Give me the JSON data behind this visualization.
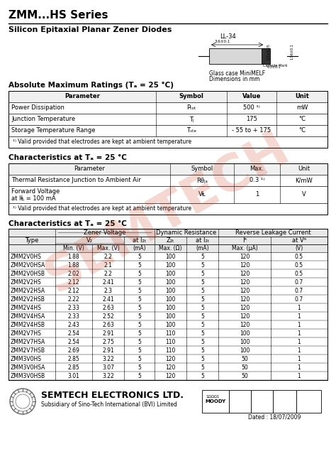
{
  "title": "ZMM...HS Series",
  "subtitle": "Silicon Epitaxial Planar Zener Diodes",
  "bg_color": "#ffffff",
  "watermark_color": "#cc2200",
  "table1_title": "Absolute Maximum Ratings (Tₐ = 25 °C)",
  "table1_headers": [
    "Parameter",
    "Symbol",
    "Value",
    "Unit"
  ],
  "table1_data": [
    [
      "Power Dissipation",
      "Pₜₒₜ",
      "500 ¹⁾",
      "mW"
    ],
    [
      "Junction Temperature",
      "Tⱼ",
      "175",
      "°C"
    ],
    [
      "Storage Temperature Range",
      "Tₛₜₑ",
      "- 55 to + 175",
      "°C"
    ]
  ],
  "table1_note": "¹⁾ Valid provided that electrodes are kept at ambient temperature",
  "table2_title": "Characteristics at Tₐ = 25 °C",
  "table2_headers": [
    "Parameter",
    "Symbol",
    "Max.",
    "Unit"
  ],
  "table2_data": [
    [
      "Thermal Resistance Junction to Ambient Air",
      "Rθⱼₐ",
      "0.3 ¹⁾",
      "K/mW"
    ],
    [
      "Forward Voltage\nat IF = 100 mA",
      "VⱠ",
      "1",
      "V"
    ]
  ],
  "table2_note": "¹⁾ Valid provided that electrodes are kept at ambient temperature",
  "table3_title": "Characteristics at Tₐ = 25 °C",
  "table3_data": [
    [
      "ZMM2V0HS",
      "1.88",
      "2.2",
      "5",
      "100",
      "5",
      "120",
      "0.5"
    ],
    [
      "ZMM2V0HSA",
      "1.88",
      "2.1",
      "5",
      "100",
      "5",
      "120",
      "0.5"
    ],
    [
      "ZMM2V0HSB",
      "2.02",
      "2.2",
      "5",
      "100",
      "5",
      "120",
      "0.5"
    ],
    [
      "ZMM2V2HS",
      "2.12",
      "2.41",
      "5",
      "100",
      "5",
      "120",
      "0.7"
    ],
    [
      "ZMM2V2HSA",
      "2.12",
      "2.3",
      "5",
      "100",
      "5",
      "120",
      "0.7"
    ],
    [
      "ZMM2V2HSB",
      "2.22",
      "2.41",
      "5",
      "100",
      "5",
      "120",
      "0.7"
    ],
    [
      "ZMM2V4HS",
      "2.33",
      "2.63",
      "5",
      "100",
      "5",
      "120",
      "1"
    ],
    [
      "ZMM2V4HSA",
      "2.33",
      "2.52",
      "5",
      "100",
      "5",
      "120",
      "1"
    ],
    [
      "ZMM2V4HSB",
      "2.43",
      "2.63",
      "5",
      "100",
      "5",
      "120",
      "1"
    ],
    [
      "ZMM2V7HS",
      "2.54",
      "2.91",
      "5",
      "110",
      "5",
      "100",
      "1"
    ],
    [
      "ZMM2V7HSA",
      "2.54",
      "2.75",
      "5",
      "110",
      "5",
      "100",
      "1"
    ],
    [
      "ZMM2V7HSB",
      "2.69",
      "2.91",
      "5",
      "110",
      "5",
      "100",
      "1"
    ],
    [
      "ZMM3V0HS",
      "2.85",
      "3.22",
      "5",
      "120",
      "5",
      "50",
      "1"
    ],
    [
      "ZMM3V0HSA",
      "2.85",
      "3.07",
      "5",
      "120",
      "5",
      "50",
      "1"
    ],
    [
      "ZMM3V0HSB",
      "3.01",
      "3.22",
      "5",
      "120",
      "5",
      "50",
      "1"
    ]
  ],
  "footer_company": "SEMTECH ELECTRONICS LTD.",
  "footer_sub": "Subsidiary of Sino-Tech International (BVI) Limited",
  "footer_date": "Dated : 18/07/2009"
}
